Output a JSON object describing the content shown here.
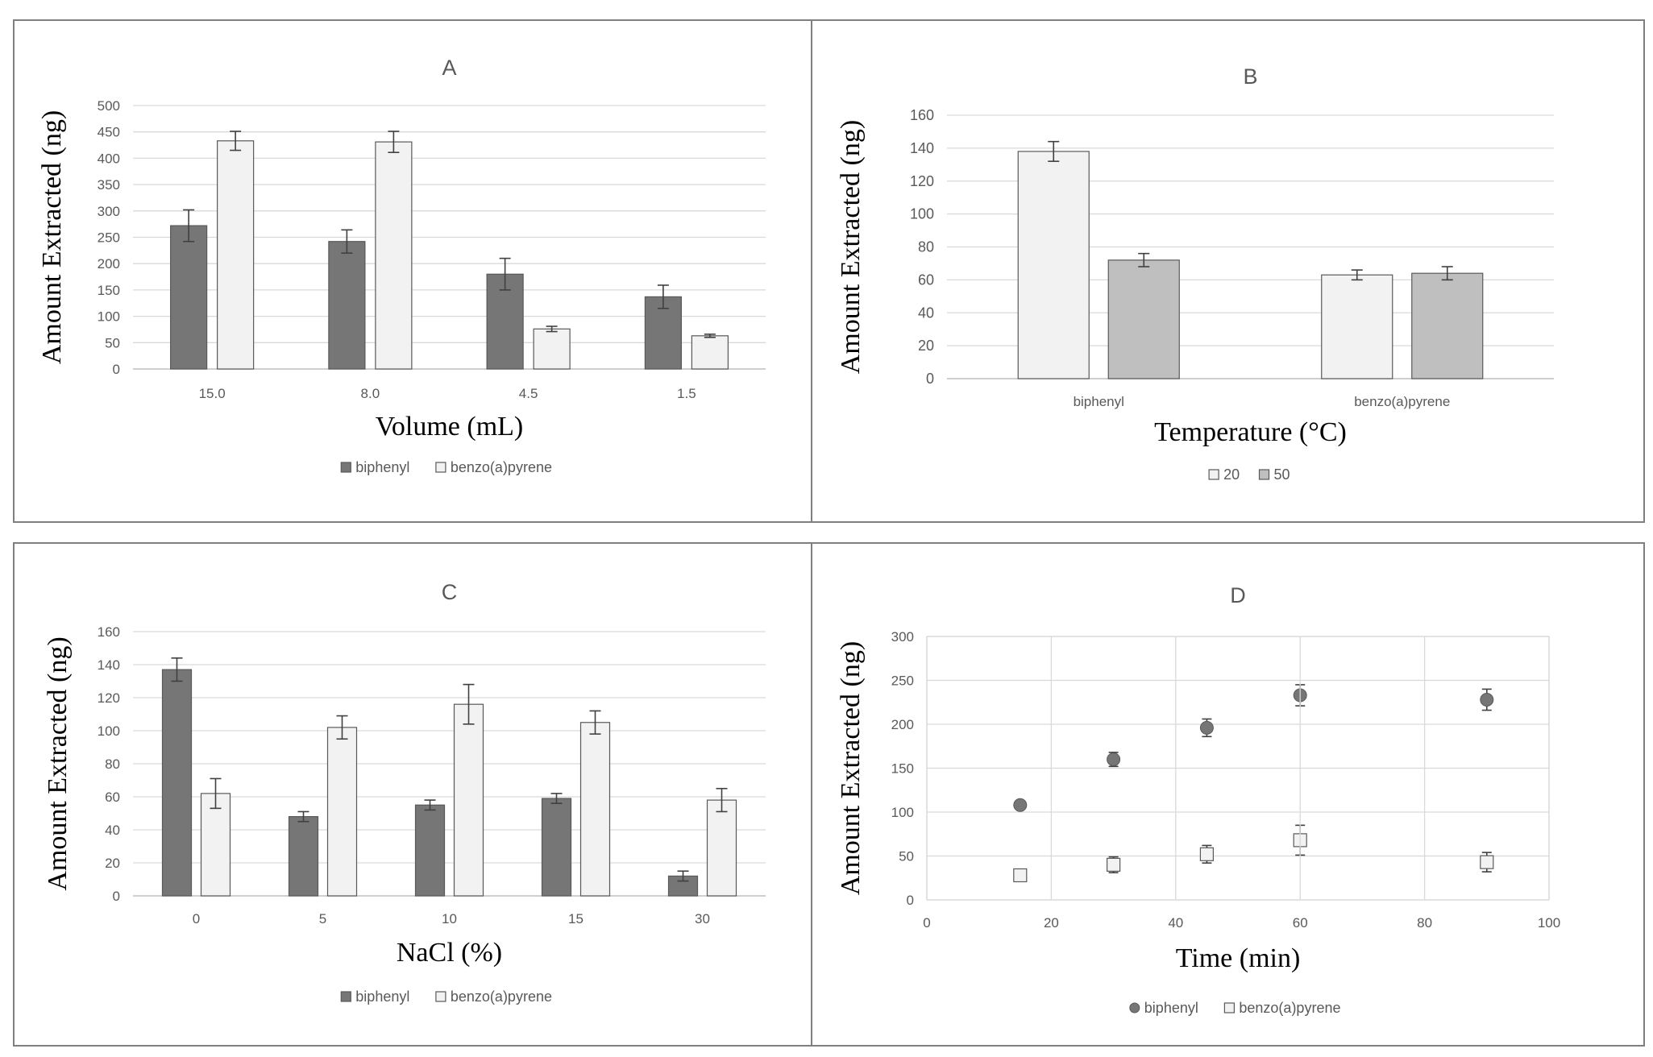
{
  "chart_data": [
    {
      "id": "A",
      "type": "bar",
      "title": "A",
      "xlabel": "Volume (mL)",
      "ylabel": "Amount Extracted (ng)",
      "ylim": [
        0,
        500
      ],
      "ytick_step": 50,
      "categories": [
        "15.0",
        "8.0",
        "4.5",
        "1.5"
      ],
      "series": [
        {
          "name": "biphenyl",
          "color": "#767676",
          "values": [
            272,
            242,
            180,
            137
          ],
          "errors": [
            30,
            22,
            30,
            22
          ]
        },
        {
          "name": "benzo(a)pyrene",
          "color": "#f2f2f2",
          "values": [
            433,
            431,
            76,
            63
          ],
          "errors": [
            18,
            20,
            5,
            3
          ]
        }
      ],
      "legend": "bottom-center",
      "grid": true
    },
    {
      "id": "B",
      "type": "bar",
      "title": "B",
      "xlabel": "Temperature (°C)",
      "ylabel": "Amount Extracted (ng)",
      "ylim": [
        0,
        160
      ],
      "ytick_step": 20,
      "categories": [
        "biphenyl",
        "benzo(a)pyrene"
      ],
      "series": [
        {
          "name": "20",
          "color": "#f2f2f2",
          "values": [
            138,
            63
          ],
          "errors": [
            6,
            3
          ]
        },
        {
          "name": "50",
          "color": "#bfbfbf",
          "values": [
            72,
            64
          ],
          "errors": [
            4,
            4
          ]
        }
      ],
      "legend": "bottom-center",
      "grid": true
    },
    {
      "id": "C",
      "type": "bar",
      "title": "C",
      "xlabel": "NaCl (%)",
      "ylabel": "Amount Extracted (ng)",
      "ylim": [
        0,
        160
      ],
      "ytick_step": 20,
      "categories": [
        "0",
        "5",
        "10",
        "15",
        "30"
      ],
      "series": [
        {
          "name": "biphenyl",
          "color": "#767676",
          "values": [
            137,
            48,
            55,
            59,
            12
          ],
          "errors": [
            7,
            3,
            3,
            3,
            3
          ]
        },
        {
          "name": "benzo(a)pyrene",
          "color": "#f2f2f2",
          "values": [
            62,
            102,
            116,
            105,
            58
          ],
          "errors": [
            9,
            7,
            12,
            7,
            7
          ]
        }
      ],
      "legend": "bottom-center",
      "grid": true
    },
    {
      "id": "D",
      "type": "scatter",
      "title": "D",
      "xlabel": "Time (min)",
      "ylabel": "Amount Extracted (ng)",
      "xlim": [
        0,
        100
      ],
      "xtick_step": 20,
      "ylim": [
        0,
        300
      ],
      "ytick_step": 50,
      "series": [
        {
          "name": "biphenyl",
          "marker": "circle",
          "color": "#767676",
          "x": [
            15,
            30,
            45,
            60,
            90
          ],
          "y": [
            108,
            160,
            196,
            233,
            228
          ],
          "errors": [
            4,
            8,
            10,
            12,
            12
          ]
        },
        {
          "name": "benzo(a)pyrene",
          "marker": "square",
          "color": "#f2f2f2",
          "x": [
            15,
            30,
            45,
            60,
            90
          ],
          "y": [
            28,
            40,
            52,
            68,
            43
          ],
          "errors": [
            5,
            9,
            10,
            17,
            11
          ]
        }
      ],
      "legend": "bottom-center",
      "grid": true
    }
  ]
}
